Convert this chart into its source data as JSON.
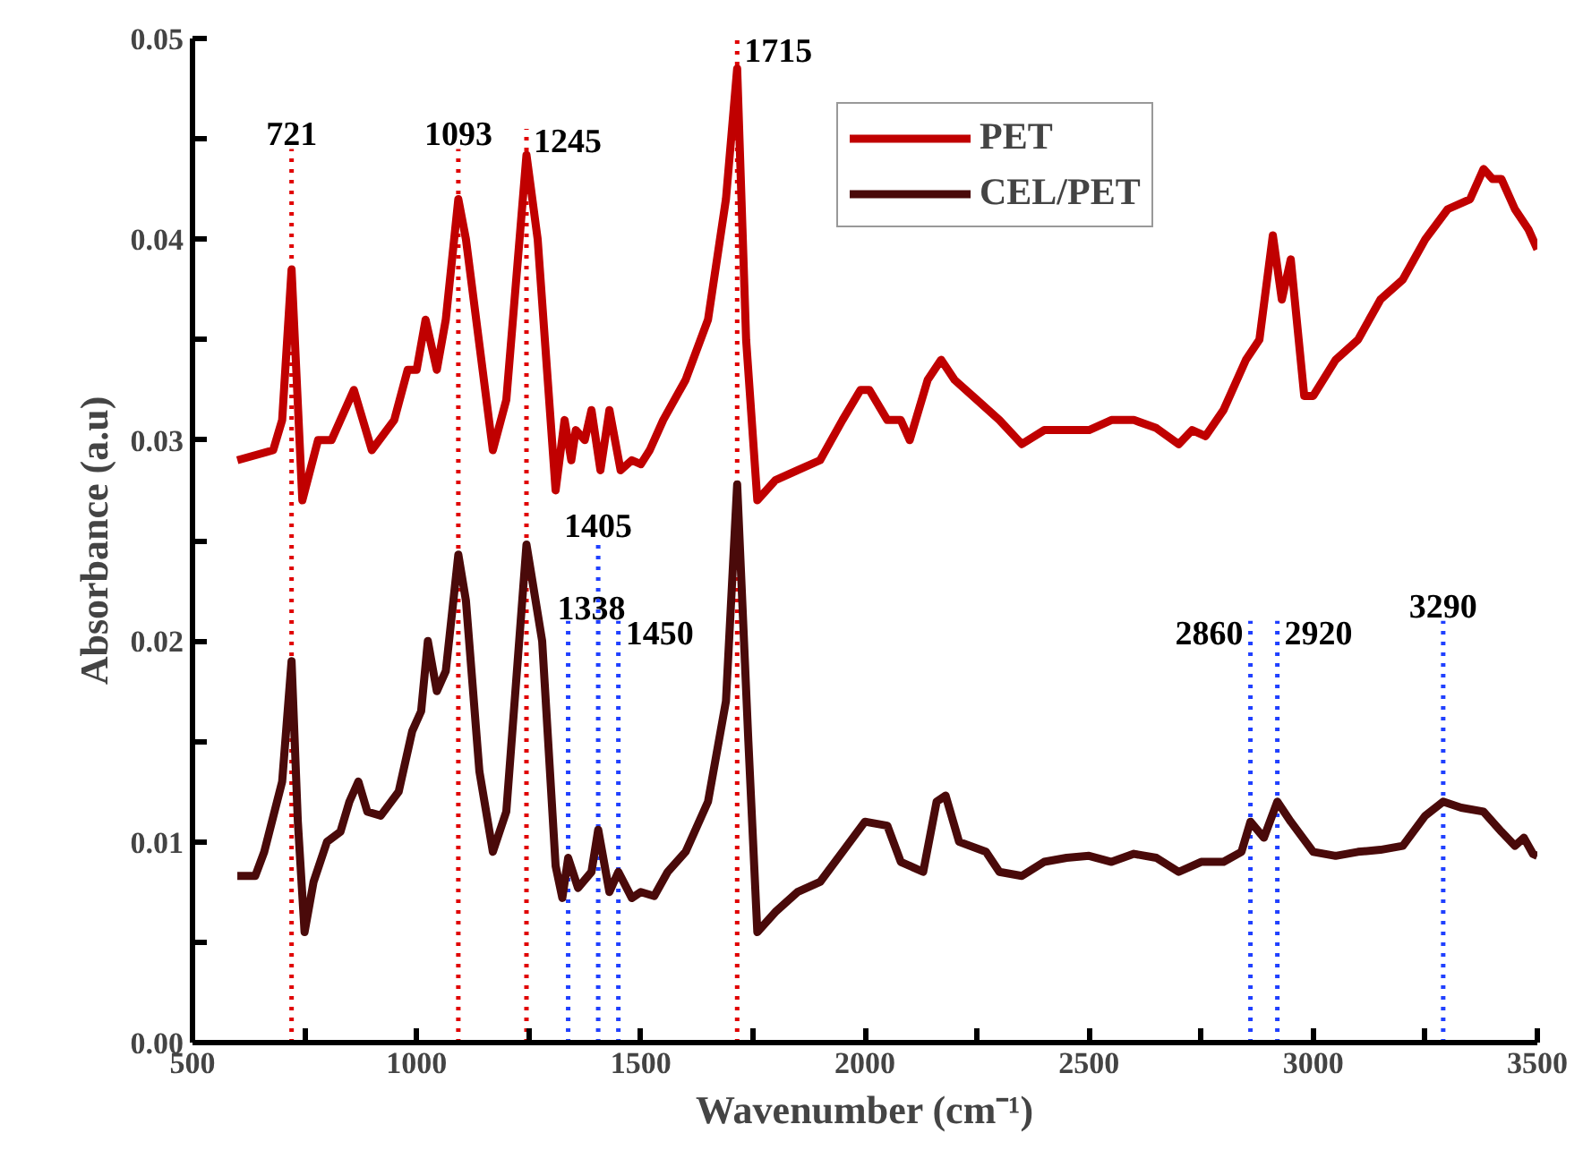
{
  "chart_data": {
    "type": "line",
    "xlabel": "Wavenumber (cm⁻¹)",
    "ylabel": "Absorbance (a.u)",
    "xlim": [
      500,
      3500
    ],
    "ylim": [
      0,
      0.05
    ],
    "xticks": [
      500,
      {
        "value": 750,
        "label": null
      },
      1000,
      {
        "value": 1250,
        "label": null
      },
      1500,
      {
        "value": 1750,
        "label": null
      },
      2000,
      {
        "value": 2250,
        "label": null
      },
      2500,
      {
        "value": 2750,
        "label": null
      },
      3000,
      {
        "value": 3250,
        "label": null
      },
      3500
    ],
    "yticks": [
      {
        "value": 0,
        "label": "0.00"
      },
      {
        "value": 0.005,
        "label": null
      },
      {
        "value": 0.01,
        "label": "0.01"
      },
      {
        "value": 0.015,
        "label": null
      },
      {
        "value": 0.02,
        "label": "0.02"
      },
      {
        "value": 0.025,
        "label": null
      },
      {
        "value": 0.03,
        "label": "0.03"
      },
      {
        "value": 0.035,
        "label": null
      },
      {
        "value": 0.04,
        "label": "0.04"
      },
      {
        "value": 0.045,
        "label": null
      },
      {
        "value": 0.05,
        "label": "0.05"
      }
    ],
    "grid": false,
    "legend": "top",
    "line_style": "solid",
    "marker": "none",
    "series": [
      {
        "name": "PET",
        "color": "#c00000",
        "x": [
          600,
          680,
          700,
          721,
          745,
          780,
          810,
          860,
          900,
          950,
          980,
          1000,
          1020,
          1045,
          1065,
          1093,
          1110,
          1170,
          1200,
          1245,
          1270,
          1310,
          1330,
          1345,
          1355,
          1375,
          1390,
          1410,
          1430,
          1455,
          1480,
          1500,
          1520,
          1550,
          1600,
          1650,
          1690,
          1715,
          1735,
          1760,
          1800,
          1850,
          1900,
          1950,
          1990,
          2010,
          2050,
          2080,
          2100,
          2140,
          2170,
          2200,
          2250,
          2300,
          2350,
          2400,
          2450,
          2500,
          2550,
          2600,
          2650,
          2700,
          2730,
          2760,
          2800,
          2850,
          2880,
          2910,
          2930,
          2950,
          2980,
          3000,
          3050,
          3100,
          3150,
          3200,
          3250,
          3300,
          3350,
          3380,
          3400,
          3420,
          3450,
          3480,
          3500
        ],
        "values": [
          0.029,
          0.0295,
          0.031,
          0.0385,
          0.027,
          0.03,
          0.03,
          0.0325,
          0.0295,
          0.031,
          0.0335,
          0.0335,
          0.036,
          0.0335,
          0.036,
          0.042,
          0.04,
          0.0295,
          0.032,
          0.0442,
          0.04,
          0.0275,
          0.031,
          0.029,
          0.0305,
          0.03,
          0.0315,
          0.0285,
          0.0315,
          0.0285,
          0.029,
          0.0288,
          0.0295,
          0.031,
          0.033,
          0.036,
          0.042,
          0.0485,
          0.035,
          0.027,
          0.028,
          0.0285,
          0.029,
          0.031,
          0.0325,
          0.0325,
          0.031,
          0.031,
          0.03,
          0.033,
          0.034,
          0.033,
          0.032,
          0.031,
          0.0298,
          0.0305,
          0.0305,
          0.0305,
          0.031,
          0.031,
          0.0306,
          0.0298,
          0.0305,
          0.0302,
          0.0315,
          0.034,
          0.035,
          0.0402,
          0.037,
          0.039,
          0.0322,
          0.0322,
          0.034,
          0.035,
          0.037,
          0.038,
          0.04,
          0.0415,
          0.042,
          0.0435,
          0.043,
          0.043,
          0.0415,
          0.0405,
          0.0395
        ]
      },
      {
        "name": "CEL/PET",
        "color": "#4a0a0a",
        "x": [
          600,
          640,
          660,
          700,
          721,
          735,
          750,
          770,
          800,
          830,
          850,
          870,
          890,
          920,
          960,
          990,
          1010,
          1025,
          1045,
          1065,
          1093,
          1110,
          1140,
          1170,
          1200,
          1245,
          1280,
          1310,
          1325,
          1338,
          1360,
          1390,
          1405,
          1430,
          1450,
          1480,
          1500,
          1530,
          1560,
          1600,
          1650,
          1690,
          1715,
          1740,
          1760,
          1800,
          1850,
          1900,
          1950,
          2000,
          2050,
          2080,
          2130,
          2160,
          2180,
          2210,
          2270,
          2300,
          2350,
          2400,
          2450,
          2500,
          2550,
          2600,
          2650,
          2700,
          2750,
          2800,
          2840,
          2860,
          2890,
          2920,
          2950,
          3000,
          3050,
          3100,
          3150,
          3200,
          3250,
          3290,
          3330,
          3380,
          3420,
          3450,
          3470,
          3490,
          3500
        ],
        "values": [
          0.0083,
          0.0083,
          0.0095,
          0.013,
          0.019,
          0.011,
          0.0055,
          0.008,
          0.01,
          0.0105,
          0.012,
          0.013,
          0.0115,
          0.0113,
          0.0125,
          0.0155,
          0.0165,
          0.02,
          0.0175,
          0.0185,
          0.0243,
          0.022,
          0.0135,
          0.0095,
          0.0115,
          0.0248,
          0.02,
          0.0088,
          0.0072,
          0.0092,
          0.0077,
          0.0085,
          0.0106,
          0.0075,
          0.0085,
          0.0072,
          0.0075,
          0.0073,
          0.0085,
          0.0095,
          0.012,
          0.017,
          0.0278,
          0.015,
          0.0055,
          0.0065,
          0.0075,
          0.008,
          0.0095,
          0.011,
          0.0108,
          0.009,
          0.0085,
          0.012,
          0.0123,
          0.01,
          0.0095,
          0.0085,
          0.0083,
          0.009,
          0.0092,
          0.0093,
          0.009,
          0.0094,
          0.0092,
          0.0085,
          0.009,
          0.009,
          0.0095,
          0.011,
          0.0102,
          0.012,
          0.011,
          0.0095,
          0.0093,
          0.0095,
          0.0096,
          0.0098,
          0.0113,
          0.012,
          0.0117,
          0.0115,
          0.0105,
          0.0098,
          0.0102,
          0.0094,
          0.0093
        ]
      }
    ],
    "ref_lines": [
      {
        "axis": "x",
        "value": 721,
        "color": "#e00000",
        "line_style": "dotted"
      },
      {
        "axis": "x",
        "value": 1093,
        "color": "#e00000",
        "line_style": "dotted"
      },
      {
        "axis": "x",
        "value": 1245,
        "color": "#e00000",
        "line_style": "dotted"
      },
      {
        "axis": "x",
        "value": 1715,
        "color": "#e00000",
        "line_style": "dotted"
      },
      {
        "axis": "x",
        "value": 1338,
        "color": "#2040ff",
        "line_style": "dotted"
      },
      {
        "axis": "x",
        "value": 1405,
        "color": "#2040ff",
        "line_style": "dotted"
      },
      {
        "axis": "x",
        "value": 1450,
        "color": "#2040ff",
        "line_style": "dotted"
      },
      {
        "axis": "x",
        "value": 2860,
        "color": "#2040ff",
        "line_style": "dotted"
      },
      {
        "axis": "x",
        "value": 2920,
        "color": "#2040ff",
        "line_style": "dotted"
      },
      {
        "axis": "x",
        "value": 3290,
        "color": "#2040ff",
        "line_style": "dotted"
      }
    ],
    "annotations": [
      {
        "text": "721",
        "x": 721,
        "y": 0.0445
      },
      {
        "text": "1093",
        "x": 1093,
        "y": 0.0445
      },
      {
        "text": "1245",
        "x": 1245,
        "y": 0.0455
      },
      {
        "text": "1715",
        "x": 1715,
        "y": 0.05
      },
      {
        "text": "1338",
        "x": 1338,
        "y": 0.021
      },
      {
        "text": "1405",
        "x": 1405,
        "y": 0.025
      },
      {
        "text": "1450",
        "x": 1450,
        "y": 0.021
      },
      {
        "text": "2860",
        "x": 2860,
        "y": 0.021
      },
      {
        "text": "2920",
        "x": 2920,
        "y": 0.021
      },
      {
        "text": "3290",
        "x": 3290,
        "y": 0.021
      }
    ]
  }
}
